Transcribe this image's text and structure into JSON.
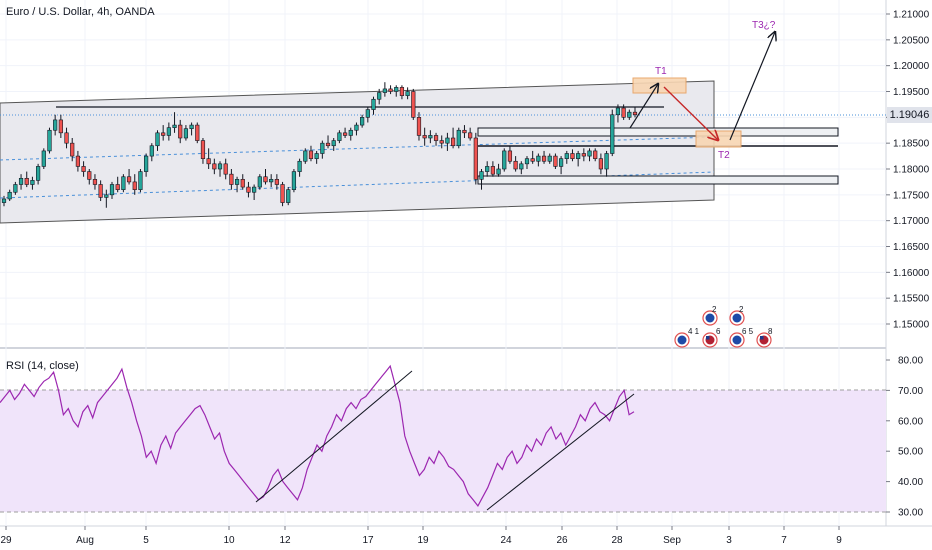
{
  "header": {
    "title": "Euro / U.S. Dollar, 4h, OANDA",
    "rsi_title": "RSI (14, close)",
    "last_price": "1.19046"
  },
  "annotations": {
    "t1": "T1",
    "t2": "T2",
    "t3": "T3¿?"
  },
  "colors": {
    "up": "#26a69a",
    "down": "#ef5350",
    "rsi_line": "#9c27b0",
    "rsi_band": "#e1bee7",
    "channel_fill": "#e9e9ee",
    "target_box": "#f5c89a",
    "arrow_red": "#c62828"
  },
  "icons": [
    "eu-flag-icon",
    "us-flag-icon",
    "eu-flag-icon",
    "us-flag-icon"
  ],
  "event_counts": [
    "4 1",
    "2",
    "6",
    "2",
    "6 5",
    "8"
  ],
  "chart_data": [
    {
      "type": "candlestick",
      "title": "Euro / U.S. Dollar, 4h, OANDA",
      "ylim": [
        1.1445,
        1.2115
      ],
      "yticks": [
        "1.21000",
        "1.20500",
        "1.20000",
        "1.19500",
        "1.19000",
        "1.18500",
        "1.18000",
        "1.17500",
        "1.17000",
        "1.16500",
        "1.16000",
        "1.15500",
        "1.15000"
      ],
      "xticks": [
        "29",
        "Aug",
        "5",
        "10",
        "12",
        "17",
        "19",
        "24",
        "26",
        "28",
        "Sep",
        "3",
        "7",
        "9"
      ],
      "ohlc": [
        [
          1.1735,
          1.1748,
          1.1728,
          1.1742
        ],
        [
          1.1742,
          1.176,
          1.1738,
          1.1755
        ],
        [
          1.1755,
          1.1775,
          1.175,
          1.177
        ],
        [
          1.177,
          1.179,
          1.176,
          1.1782
        ],
        [
          1.1782,
          1.1795,
          1.1765,
          1.177
        ],
        [
          1.177,
          1.1785,
          1.176,
          1.1778
        ],
        [
          1.1778,
          1.181,
          1.177,
          1.1805
        ],
        [
          1.1805,
          1.184,
          1.18,
          1.1835
        ],
        [
          1.1835,
          1.188,
          1.183,
          1.1875
        ],
        [
          1.1875,
          1.1905,
          1.1865,
          1.1895
        ],
        [
          1.1895,
          1.1905,
          1.186,
          1.187
        ],
        [
          1.187,
          1.188,
          1.184,
          1.185
        ],
        [
          1.185,
          1.186,
          1.1815,
          1.1825
        ],
        [
          1.1825,
          1.1835,
          1.1795,
          1.1805
        ],
        [
          1.1805,
          1.1815,
          1.1785,
          1.1795
        ],
        [
          1.1795,
          1.18,
          1.177,
          1.178
        ],
        [
          1.178,
          1.179,
          1.176,
          1.177
        ],
        [
          1.177,
          1.1778,
          1.1738,
          1.1745
        ],
        [
          1.1745,
          1.176,
          1.1725,
          1.175
        ],
        [
          1.175,
          1.1775,
          1.1742,
          1.177
        ],
        [
          1.177,
          1.1785,
          1.1755,
          1.176
        ],
        [
          1.176,
          1.179,
          1.1755,
          1.1785
        ],
        [
          1.1785,
          1.18,
          1.177,
          1.1775
        ],
        [
          1.1775,
          1.179,
          1.175,
          1.176
        ],
        [
          1.176,
          1.18,
          1.1755,
          1.1795
        ],
        [
          1.1795,
          1.183,
          1.1785,
          1.1825
        ],
        [
          1.1825,
          1.185,
          1.1815,
          1.1845
        ],
        [
          1.1845,
          1.1875,
          1.1835,
          1.187
        ],
        [
          1.187,
          1.1885,
          1.1855,
          1.1865
        ],
        [
          1.1865,
          1.189,
          1.1855,
          1.188
        ],
        [
          1.188,
          1.191,
          1.187,
          1.1885
        ],
        [
          1.1885,
          1.1895,
          1.185,
          1.186
        ],
        [
          1.186,
          1.1885,
          1.1855,
          1.1878
        ],
        [
          1.1878,
          1.189,
          1.1865,
          1.1885
        ],
        [
          1.1885,
          1.189,
          1.185,
          1.1855
        ],
        [
          1.1855,
          1.186,
          1.181,
          1.182
        ],
        [
          1.182,
          1.184,
          1.18,
          1.181
        ],
        [
          1.181,
          1.182,
          1.179,
          1.18
        ],
        [
          1.18,
          1.1815,
          1.1785,
          1.181
        ],
        [
          1.181,
          1.182,
          1.178,
          1.179
        ],
        [
          1.179,
          1.18,
          1.176,
          1.177
        ],
        [
          1.177,
          1.1785,
          1.1755,
          1.178
        ],
        [
          1.178,
          1.179,
          1.176,
          1.1765
        ],
        [
          1.1765,
          1.1775,
          1.1745,
          1.1755
        ],
        [
          1.1755,
          1.177,
          1.174,
          1.1765
        ],
        [
          1.1765,
          1.179,
          1.176,
          1.1785
        ],
        [
          1.1785,
          1.18,
          1.177,
          1.1775
        ],
        [
          1.1775,
          1.179,
          1.1765,
          1.178
        ],
        [
          1.178,
          1.179,
          1.176,
          1.177
        ],
        [
          1.177,
          1.1775,
          1.1728,
          1.1735
        ],
        [
          1.1735,
          1.1765,
          1.173,
          1.176
        ],
        [
          1.176,
          1.18,
          1.1755,
          1.1795
        ],
        [
          1.1795,
          1.182,
          1.1785,
          1.1815
        ],
        [
          1.1815,
          1.184,
          1.181,
          1.1835
        ],
        [
          1.1835,
          1.1845,
          1.1815,
          1.182
        ],
        [
          1.182,
          1.1835,
          1.181,
          1.183
        ],
        [
          1.183,
          1.1855,
          1.182,
          1.185
        ],
        [
          1.185,
          1.1865,
          1.184,
          1.1845
        ],
        [
          1.1845,
          1.186,
          1.1835,
          1.1855
        ],
        [
          1.1855,
          1.1875,
          1.185,
          1.187
        ],
        [
          1.187,
          1.188,
          1.186,
          1.1865
        ],
        [
          1.1865,
          1.188,
          1.1855,
          1.1875
        ],
        [
          1.1875,
          1.189,
          1.1865,
          1.1885
        ],
        [
          1.1885,
          1.1905,
          1.188,
          1.19
        ],
        [
          1.19,
          1.192,
          1.189,
          1.1915
        ],
        [
          1.1915,
          1.194,
          1.1905,
          1.1935
        ],
        [
          1.1935,
          1.1955,
          1.1925,
          1.1948
        ],
        [
          1.1948,
          1.1968,
          1.194,
          1.1955
        ],
        [
          1.1955,
          1.1962,
          1.1945,
          1.195
        ],
        [
          1.195,
          1.1962,
          1.194,
          1.1958
        ],
        [
          1.1958,
          1.1962,
          1.1935,
          1.1942
        ],
        [
          1.1942,
          1.1958,
          1.1935,
          1.195
        ],
        [
          1.195,
          1.1955,
          1.1895,
          1.19
        ],
        [
          1.19,
          1.191,
          1.1855,
          1.1865
        ],
        [
          1.1865,
          1.188,
          1.1845,
          1.186
        ],
        [
          1.186,
          1.1875,
          1.185,
          1.1865
        ],
        [
          1.1865,
          1.187,
          1.1845,
          1.1855
        ],
        [
          1.1855,
          1.1865,
          1.184,
          1.185
        ],
        [
          1.185,
          1.187,
          1.1835,
          1.186
        ],
        [
          1.186,
          1.188,
          1.184,
          1.1845
        ],
        [
          1.1845,
          1.188,
          1.184,
          1.1875
        ],
        [
          1.1875,
          1.1885,
          1.186,
          1.187
        ],
        [
          1.187,
          1.188,
          1.1855,
          1.186
        ],
        [
          1.186,
          1.187,
          1.177,
          1.178
        ],
        [
          1.178,
          1.18,
          1.176,
          1.1795
        ],
        [
          1.1795,
          1.1815,
          1.1785,
          1.1805
        ],
        [
          1.1805,
          1.1815,
          1.1785,
          1.179
        ],
        [
          1.179,
          1.181,
          1.1785,
          1.18
        ],
        [
          1.18,
          1.184,
          1.1795,
          1.1835
        ],
        [
          1.1835,
          1.1845,
          1.181,
          1.1815
        ],
        [
          1.1815,
          1.1825,
          1.1795,
          1.18
        ],
        [
          1.18,
          1.1815,
          1.179,
          1.181
        ],
        [
          1.181,
          1.1825,
          1.18,
          1.182
        ],
        [
          1.182,
          1.1835,
          1.181,
          1.1815
        ],
        [
          1.1815,
          1.183,
          1.1805,
          1.1825
        ],
        [
          1.1825,
          1.1835,
          1.181,
          1.1815
        ],
        [
          1.1815,
          1.183,
          1.181,
          1.1825
        ],
        [
          1.1825,
          1.183,
          1.18,
          1.1805
        ],
        [
          1.1805,
          1.1825,
          1.179,
          1.182
        ],
        [
          1.182,
          1.1835,
          1.181,
          1.183
        ],
        [
          1.183,
          1.1838,
          1.1815,
          1.182
        ],
        [
          1.182,
          1.1835,
          1.1805,
          1.183
        ],
        [
          1.183,
          1.184,
          1.1815,
          1.1825
        ],
        [
          1.1825,
          1.184,
          1.1815,
          1.1835
        ],
        [
          1.1835,
          1.184,
          1.1815,
          1.182
        ],
        [
          1.182,
          1.183,
          1.179,
          1.18
        ],
        [
          1.18,
          1.1835,
          1.1785,
          1.183
        ],
        [
          1.183,
          1.1915,
          1.1825,
          1.1905
        ],
        [
          1.1905,
          1.1925,
          1.189,
          1.1918
        ],
        [
          1.1918,
          1.1925,
          1.1895,
          1.19
        ],
        [
          1.19,
          1.1915,
          1.1895,
          1.191
        ],
        [
          1.191,
          1.192,
          1.19,
          1.1905
        ]
      ]
    },
    {
      "type": "line",
      "title": "RSI (14, close)",
      "ylim": [
        26,
        82
      ],
      "yticks": [
        "80.00",
        "70.00",
        "60.00",
        "50.00",
        "40.00",
        "30.00"
      ],
      "band": [
        30,
        70
      ],
      "values": [
        66,
        68,
        70,
        67,
        69,
        72,
        70,
        68,
        71,
        73,
        74,
        76,
        70,
        62,
        64,
        60,
        58,
        63,
        65,
        61,
        66,
        68,
        70,
        72,
        74,
        77,
        71,
        66,
        60,
        55,
        48,
        50,
        46,
        52,
        55,
        51,
        56,
        58,
        60,
        62,
        64,
        65,
        62,
        58,
        54,
        56,
        50,
        46,
        44,
        42,
        40,
        38,
        36,
        34,
        35,
        38,
        42,
        44,
        40,
        38,
        36,
        34,
        38,
        44,
        48,
        52,
        50,
        55,
        58,
        62,
        60,
        64,
        66,
        64,
        67,
        68,
        70,
        72,
        74,
        76,
        78,
        72,
        66,
        55,
        50,
        46,
        42,
        44,
        48,
        46,
        50,
        48,
        45,
        44,
        42,
        40,
        36,
        34,
        32,
        35,
        38,
        42,
        46,
        44,
        48,
        50,
        46,
        48,
        52,
        50,
        54,
        52,
        56,
        58,
        54,
        56,
        52,
        55,
        58,
        62,
        60,
        64,
        66,
        63,
        62,
        60,
        64,
        68,
        70,
        62,
        63
      ]
    }
  ]
}
